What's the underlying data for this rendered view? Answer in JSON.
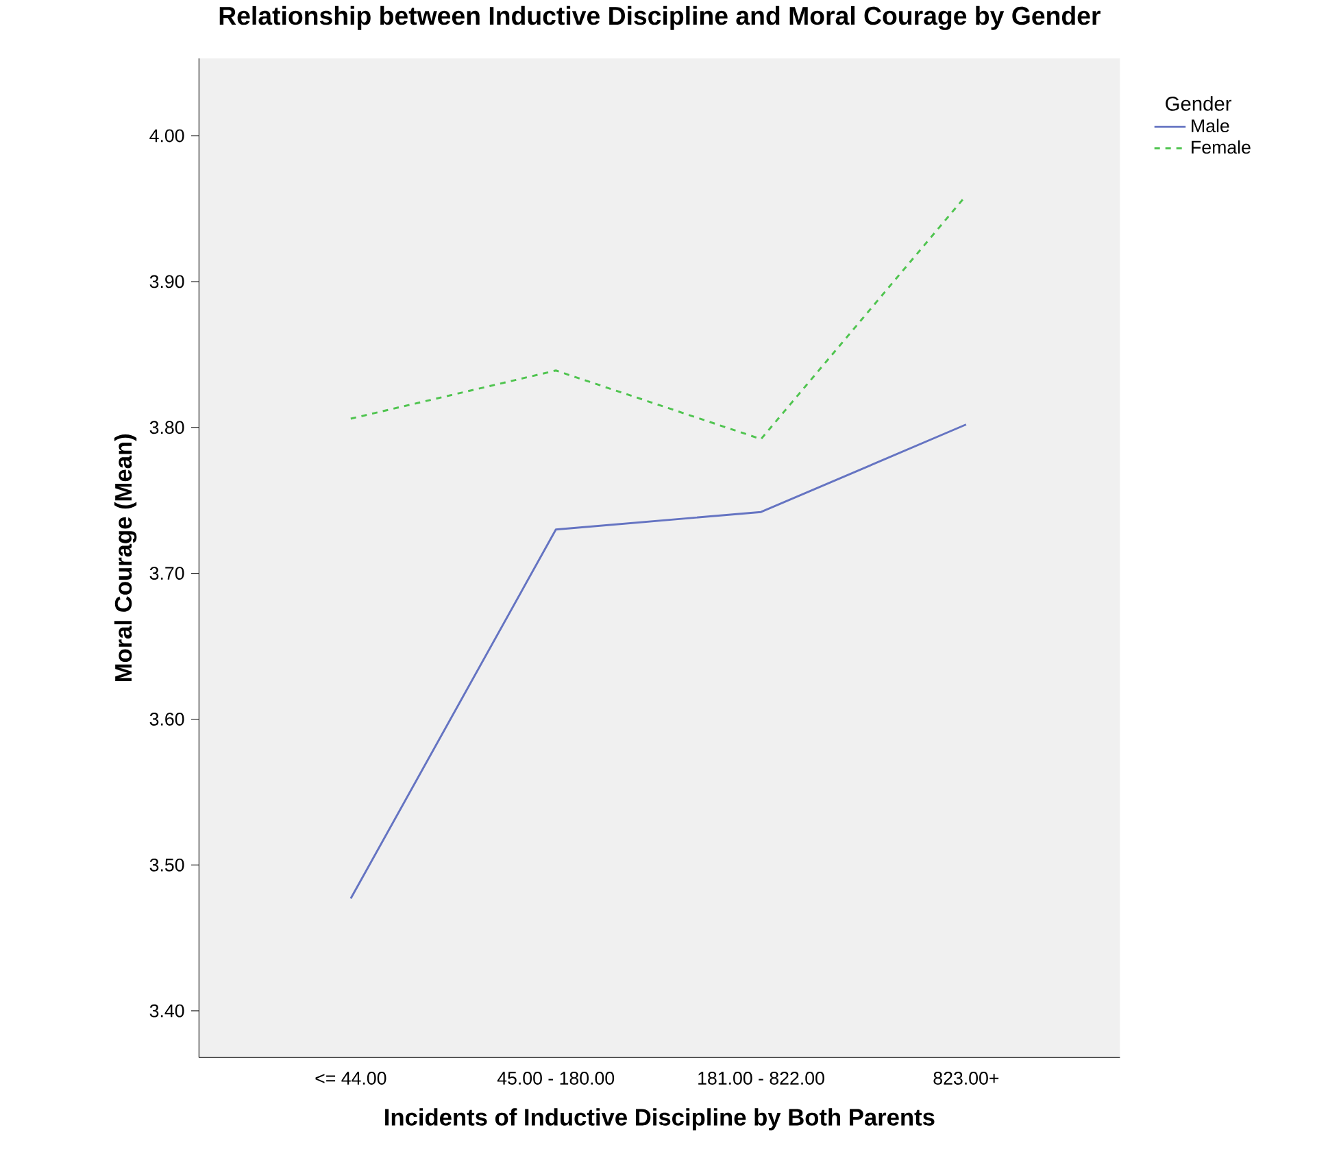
{
  "chart_data": {
    "type": "line",
    "title": "Relationship between Inductive Discipline and Moral Courage by Gender",
    "xlabel": "Incidents of Inductive Discipline by Both Parents",
    "ylabel": "Moral Courage (Mean)",
    "legend_title": "Gender",
    "legend": "top right",
    "grid": false,
    "marker": "none",
    "categories": [
      "<= 44.00",
      "45.00 - 180.00",
      "181.00 - 822.00",
      "823.00+"
    ],
    "ylim": [
      3.368,
      4.053
    ],
    "yticks": [
      {
        "value": 3.4,
        "label": "3.40"
      },
      {
        "value": 3.5,
        "label": "3.50"
      },
      {
        "value": 3.6,
        "label": "3.60"
      },
      {
        "value": 3.7,
        "label": "3.70"
      },
      {
        "value": 3.8,
        "label": "3.80"
      },
      {
        "value": 3.9,
        "label": "3.90"
      },
      {
        "value": 4.0,
        "label": "4.00"
      }
    ],
    "series": [
      {
        "name": "Male",
        "color": "#6574c2",
        "line_style": "solid",
        "values": [
          3.477,
          3.73,
          3.742,
          3.802
        ]
      },
      {
        "name": "Female",
        "color": "#4fc44f",
        "line_style": "dashed",
        "values": [
          3.806,
          3.839,
          3.792,
          3.959
        ]
      }
    ]
  }
}
